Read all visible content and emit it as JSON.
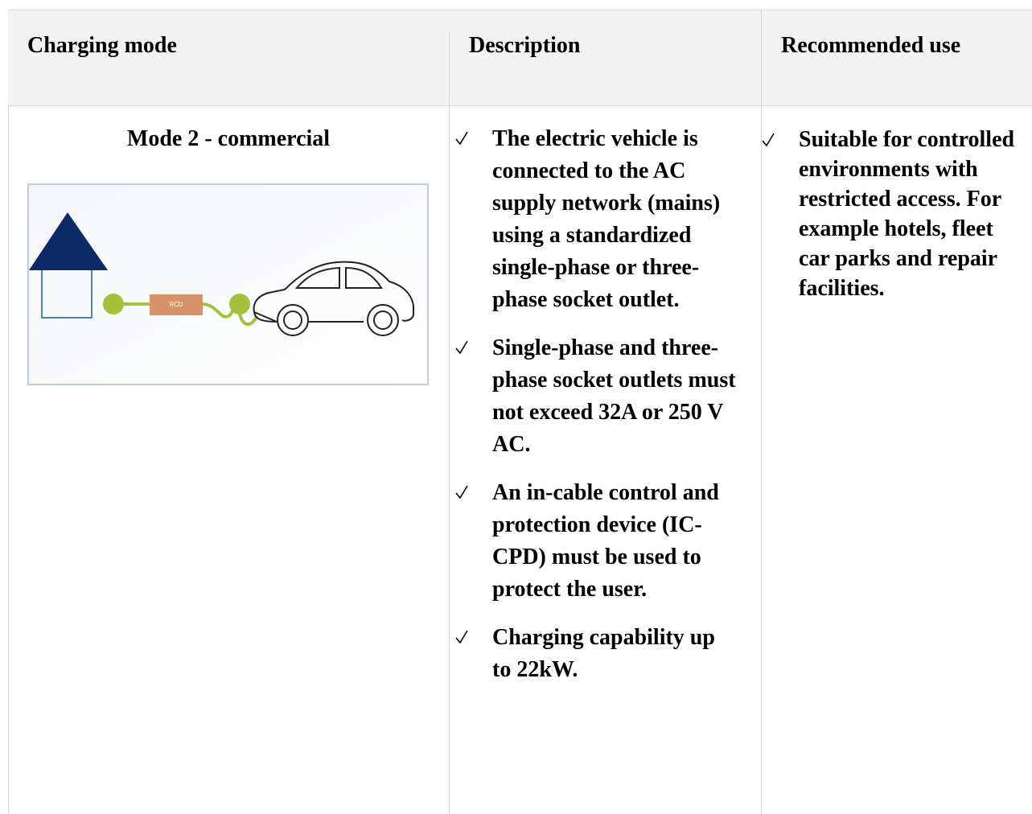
{
  "header": {
    "columns": [
      "Charging mode",
      "Description",
      "Recommended use"
    ]
  },
  "row": {
    "mode": "Mode 2 - commercial",
    "image": {
      "label": "RCD"
    },
    "description": [
      "The electric vehicle is connected to the AC supply network (mains) using a standardized single-phase or three-phase socket outlet.",
      "Single-phase and three-phase socket outlets must not exceed 32A or 250 V AC.",
      "An in-cable control and protection device (IC-CPD) must be used to protect the user.",
      "Charging capability up to 22kW."
    ],
    "recommended": [
      "Suitable for controlled environments with restricted access. For example hotels, fleet car parks and repair facilities."
    ]
  }
}
